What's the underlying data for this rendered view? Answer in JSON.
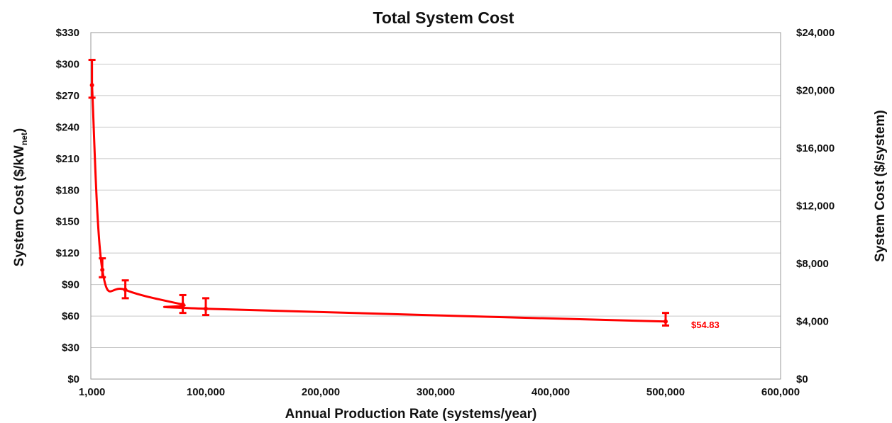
{
  "chart_data": {
    "type": "line",
    "title": "Total System Cost",
    "xlabel": "Annual Production Rate (systems/year)",
    "ylabel": "System Cost ($/kWnet)",
    "ylabel_main": "System Cost ($/kW",
    "ylabel_sub": "net",
    "ylabel_close": ")",
    "y2label": "System Cost ($/system)",
    "xlim": [
      0,
      600000
    ],
    "ylim": [
      0,
      330
    ],
    "y2lim": [
      0,
      24000
    ],
    "x_ticks": [
      1000,
      100000,
      200000,
      300000,
      400000,
      500000,
      600000
    ],
    "x_tick_labels": [
      "1,000",
      "100,000",
      "200,000",
      "300,000",
      "400,000",
      "500,000",
      "600,000"
    ],
    "y_ticks": [
      0,
      30,
      60,
      90,
      120,
      150,
      180,
      210,
      240,
      270,
      300,
      330
    ],
    "y_tick_labels": [
      "$0",
      "$30",
      "$60",
      "$90",
      "$120",
      "$150",
      "$180",
      "$210",
      "$240",
      "$270",
      "$300",
      "$330"
    ],
    "y2_ticks": [
      0,
      4000,
      8000,
      12000,
      16000,
      20000,
      24000
    ],
    "y2_tick_labels": [
      "$0",
      "$4,000",
      "$8,000",
      "$12,000",
      "$16,000",
      "$20,000",
      "$24,000"
    ],
    "grid": true,
    "legend": "none",
    "series": [
      {
        "x": [
          1000,
          10000,
          30000,
          80000,
          100000,
          500000
        ],
        "y": [
          280,
          104,
          85,
          71,
          67,
          54.83
        ],
        "err_low": [
          268,
          97,
          77,
          63,
          61,
          51
        ],
        "err_high": [
          304,
          115,
          94,
          80,
          77,
          63
        ],
        "color": "#ff0000"
      }
    ],
    "annotations": [
      {
        "text": "$54.83",
        "x": 500000,
        "y": 54.83,
        "color": "#ff0000"
      }
    ]
  }
}
